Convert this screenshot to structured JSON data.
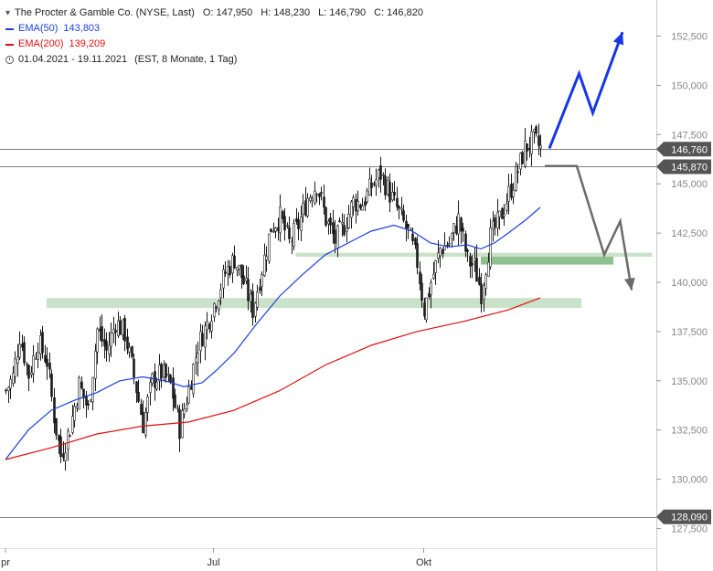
{
  "legend": {
    "title": "The Procter & Gamble Co. (NYSE, Last)",
    "ohlc": {
      "o": "O: 147,950",
      "h": "H: 148,230",
      "l": "L: 146,790",
      "c": "C: 146,820"
    },
    "ema50": {
      "label": "EMA(50)",
      "value": "143,803",
      "color": "#1a3fe0"
    },
    "ema200": {
      "label": "EMA(200)",
      "value": "139,209",
      "color": "#e01010"
    },
    "range": "01.04.2021 - 19.11.2021",
    "range_info": "(EST, 8 Monate, 1 Tag)"
  },
  "chart_data": {
    "type": "candlestick",
    "ylim": [
      126.5,
      153.5
    ],
    "y_ticks": [
      127.5,
      130,
      132.5,
      135,
      137.5,
      140,
      142.5,
      145,
      147.5,
      150,
      152.5
    ],
    "y_tick_labels": [
      "127,500",
      "130,000",
      "132,500",
      "135,000",
      "137,500",
      "140,000",
      "142,500",
      "145,000",
      "147,500",
      "150,000",
      "152,500"
    ],
    "x_labels": [
      {
        "label": "pr",
        "day": 0
      },
      {
        "label": "Jul",
        "day": 91
      },
      {
        "label": "Okt",
        "day": 183
      }
    ],
    "price_markers": [
      {
        "value": 146.76,
        "label": "146,760"
      },
      {
        "value": 145.87,
        "label": "145,870"
      },
      {
        "value": 128.09,
        "label": "128,090"
      }
    ],
    "close_path": [
      [
        0,
        134.5
      ],
      [
        3,
        135.2
      ],
      [
        6,
        137.3
      ],
      [
        10,
        135.3
      ],
      [
        14,
        137.0
      ],
      [
        18,
        136.0
      ],
      [
        21,
        133.2
      ],
      [
        24,
        131.2
      ],
      [
        28,
        132.6
      ],
      [
        32,
        134.8
      ],
      [
        36,
        133.5
      ],
      [
        40,
        137.6
      ],
      [
        44,
        136.5
      ],
      [
        48,
        138.0
      ],
      [
        52,
        137.4
      ],
      [
        56,
        135.2
      ],
      [
        60,
        132.8
      ],
      [
        64,
        135.0
      ],
      [
        68,
        135.4
      ],
      [
        72,
        134.8
      ],
      [
        76,
        132.6
      ],
      [
        80,
        134.6
      ],
      [
        84,
        136.8
      ],
      [
        88,
        137.9
      ],
      [
        92,
        139.2
      ],
      [
        96,
        140.5
      ],
      [
        100,
        141.2
      ],
      [
        104,
        140.0
      ],
      [
        108,
        138.6
      ],
      [
        112,
        140.7
      ],
      [
        116,
        142.8
      ],
      [
        120,
        143.3
      ],
      [
        124,
        142.0
      ],
      [
        128,
        142.9
      ],
      [
        132,
        144.3
      ],
      [
        136,
        145.0
      ],
      [
        140,
        143.2
      ],
      [
        144,
        142.1
      ],
      [
        148,
        142.9
      ],
      [
        152,
        144.1
      ],
      [
        156,
        144.0
      ],
      [
        160,
        144.9
      ],
      [
        164,
        145.5
      ],
      [
        168,
        144.5
      ],
      [
        172,
        143.5
      ],
      [
        176,
        142.5
      ],
      [
        180,
        141.0
      ],
      [
        183,
        138.6
      ],
      [
        186,
        140.0
      ],
      [
        190,
        141.7
      ],
      [
        194,
        142.0
      ],
      [
        198,
        143.2
      ],
      [
        202,
        141.1
      ],
      [
        205,
        140.8
      ],
      [
        208,
        139.5
      ],
      [
        212,
        142.3
      ],
      [
        216,
        143.2
      ],
      [
        220,
        144.5
      ],
      [
        224,
        145.7
      ],
      [
        227,
        146.8
      ],
      [
        231,
        147.2
      ],
      [
        234,
        146.8
      ]
    ],
    "ema50": [
      [
        0,
        131.0
      ],
      [
        10,
        132.5
      ],
      [
        20,
        133.5
      ],
      [
        30,
        134.0
      ],
      [
        40,
        134.4
      ],
      [
        50,
        135.0
      ],
      [
        60,
        135.2
      ],
      [
        70,
        135.0
      ],
      [
        78,
        134.7
      ],
      [
        86,
        134.9
      ],
      [
        92,
        135.5
      ],
      [
        100,
        136.4
      ],
      [
        110,
        137.9
      ],
      [
        120,
        139.3
      ],
      [
        130,
        140.4
      ],
      [
        140,
        141.4
      ],
      [
        150,
        142.0
      ],
      [
        160,
        142.6
      ],
      [
        170,
        142.9
      ],
      [
        178,
        142.6
      ],
      [
        186,
        142.0
      ],
      [
        194,
        141.8
      ],
      [
        202,
        141.9
      ],
      [
        208,
        141.7
      ],
      [
        214,
        142.0
      ],
      [
        220,
        142.5
      ],
      [
        228,
        143.2
      ],
      [
        234,
        143.803
      ]
    ],
    "ema200": [
      [
        0,
        131.0
      ],
      [
        20,
        131.6
      ],
      [
        40,
        132.3
      ],
      [
        60,
        132.7
      ],
      [
        80,
        132.9
      ],
      [
        100,
        133.5
      ],
      [
        120,
        134.5
      ],
      [
        140,
        135.8
      ],
      [
        160,
        136.8
      ],
      [
        180,
        137.5
      ],
      [
        200,
        138.0
      ],
      [
        220,
        138.6
      ],
      [
        234,
        139.209
      ]
    ],
    "zones": [
      {
        "day_start": 18,
        "day_end": 252,
        "low": 138.7,
        "high": 139.2,
        "shade": "light"
      },
      {
        "day_start": 127,
        "day_end": 283,
        "low": 141.3,
        "high": 141.5,
        "shade": "light"
      },
      {
        "day_start": 208,
        "day_end": 266,
        "low": 140.9,
        "high": 141.3,
        "shade": "dark"
      }
    ],
    "scenario_up": [
      [
        238,
        146.8
      ],
      [
        251,
        150.6
      ],
      [
        257,
        148.6
      ],
      [
        270,
        152.7
      ]
    ],
    "scenario_down": [
      [
        236,
        145.9
      ],
      [
        250,
        145.9
      ],
      [
        262,
        141.4
      ],
      [
        269,
        143.1
      ],
      [
        274,
        139.6
      ]
    ]
  }
}
